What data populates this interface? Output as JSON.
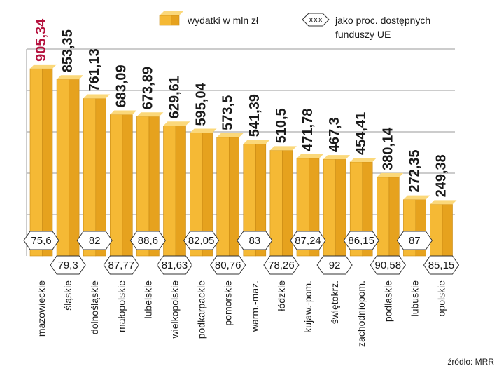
{
  "chart_data": {
    "type": "bar",
    "categories": [
      "mazowieckie",
      "śląskie",
      "dolnośląskie",
      "małopolskie",
      "lubelskie",
      "wielkopolskie",
      "podkarpackie",
      "pomorskie",
      "warm.-maz.",
      "łódzkie",
      "kujaw.-pom.",
      "świętokrz.",
      "zachodniopom.",
      "podlaskie",
      "lubuskie",
      "opolskie"
    ],
    "series": [
      {
        "name": "wydatki w mln zł",
        "values": [
          905.34,
          853.35,
          761.13,
          683.09,
          673.89,
          629.61,
          595.04,
          573.5,
          541.39,
          510.5,
          471.78,
          467.3,
          454.41,
          380.14,
          272.35,
          249.38
        ],
        "labels": [
          "905,34",
          "853,35",
          "761,13",
          "683,09",
          "673,89",
          "629,61",
          "595,04",
          "573,5",
          "541,39",
          "510,5",
          "471,78",
          "467,3",
          "454,41",
          "380,14",
          "272,35",
          "249,38"
        ]
      },
      {
        "name": "jako proc. dostępnych funduszy UE",
        "values": [
          75.6,
          79.3,
          82,
          87.77,
          88.6,
          81.63,
          82.05,
          80.76,
          83,
          78.26,
          87.24,
          92,
          86.15,
          90.58,
          87,
          85.15
        ],
        "labels": [
          "75,6",
          "79,3",
          "82",
          "87,77",
          "88,6",
          "81,63",
          "82,05",
          "80,76",
          "83",
          "78,26",
          "87,24",
          "92",
          "86,15",
          "90,58",
          "87",
          "85,15"
        ]
      }
    ],
    "ylim": [
      0,
      1000
    ],
    "grid": true,
    "legend": {
      "position": "top-right",
      "bar_label": "wydatki w mln zł",
      "hex_sample": "XXX",
      "hex_label_line1": "jako proc. dostępnych",
      "hex_label_line2": "funduszy UE"
    },
    "source": "źródło: MRR",
    "colors": {
      "bar_front": "#f5b935",
      "bar_side": "#e6a21e",
      "bar_top": "#fbd87a",
      "bar_edge": "#c98a14",
      "highlight_label": "#b5123e",
      "label": "#1a1a1a",
      "grid": "#9a9a9a"
    }
  }
}
